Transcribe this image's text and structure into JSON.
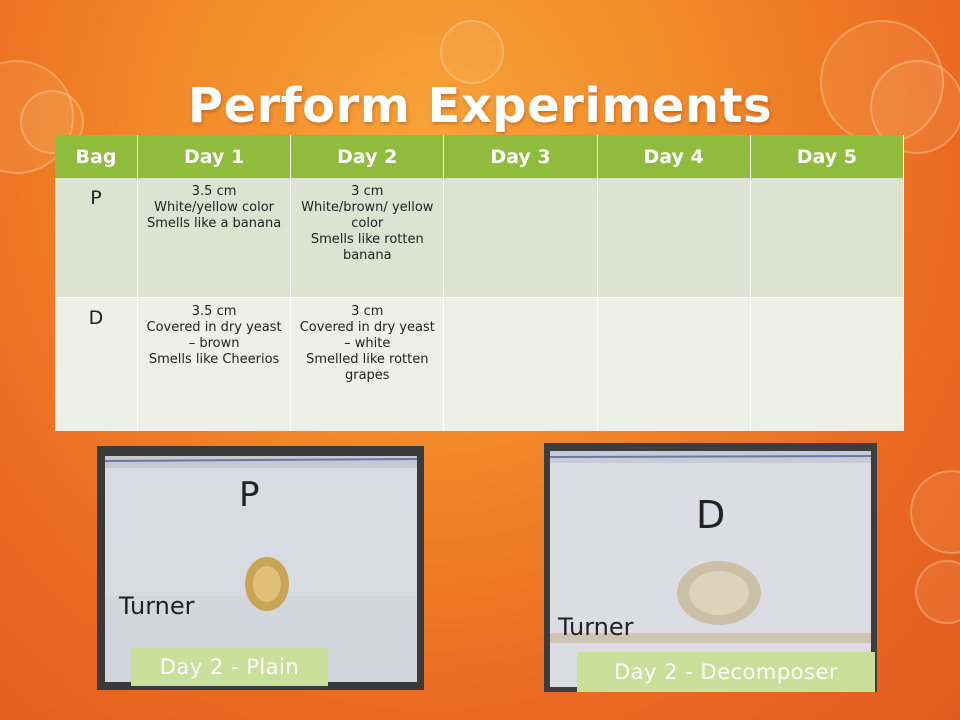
{
  "title": "Perform Experiments",
  "table": {
    "headers": [
      "Bag",
      "Day 1",
      "Day 2",
      "Day 3",
      "Day 4",
      "Day 5"
    ],
    "rows": [
      {
        "bag": "P",
        "cells": [
          [
            "3.5 cm",
            "White/yellow color",
            "Smells like a banana"
          ],
          [
            "3 cm",
            "White/brown/ yellow color",
            "Smells like rotten banana"
          ],
          [],
          [],
          []
        ]
      },
      {
        "bag": "D",
        "cells": [
          [
            "3.5 cm",
            "Covered in dry yeast – brown",
            "Smells like Cheerios"
          ],
          [
            "3 cm",
            "Covered in dry yeast – white",
            "Smelled like rotten grapes"
          ],
          [],
          [],
          []
        ]
      }
    ]
  },
  "photos": {
    "left": {
      "bag_letter": "P",
      "bag_name": "Turner",
      "caption": "Day 2 - Plain"
    },
    "right": {
      "bag_letter": "D",
      "bag_name": "Turner",
      "caption": "Day 2 - Decomposer"
    }
  },
  "colors": {
    "header": "#8fbc3c",
    "caption": "#c9e09a",
    "background": "#ea6a22"
  }
}
